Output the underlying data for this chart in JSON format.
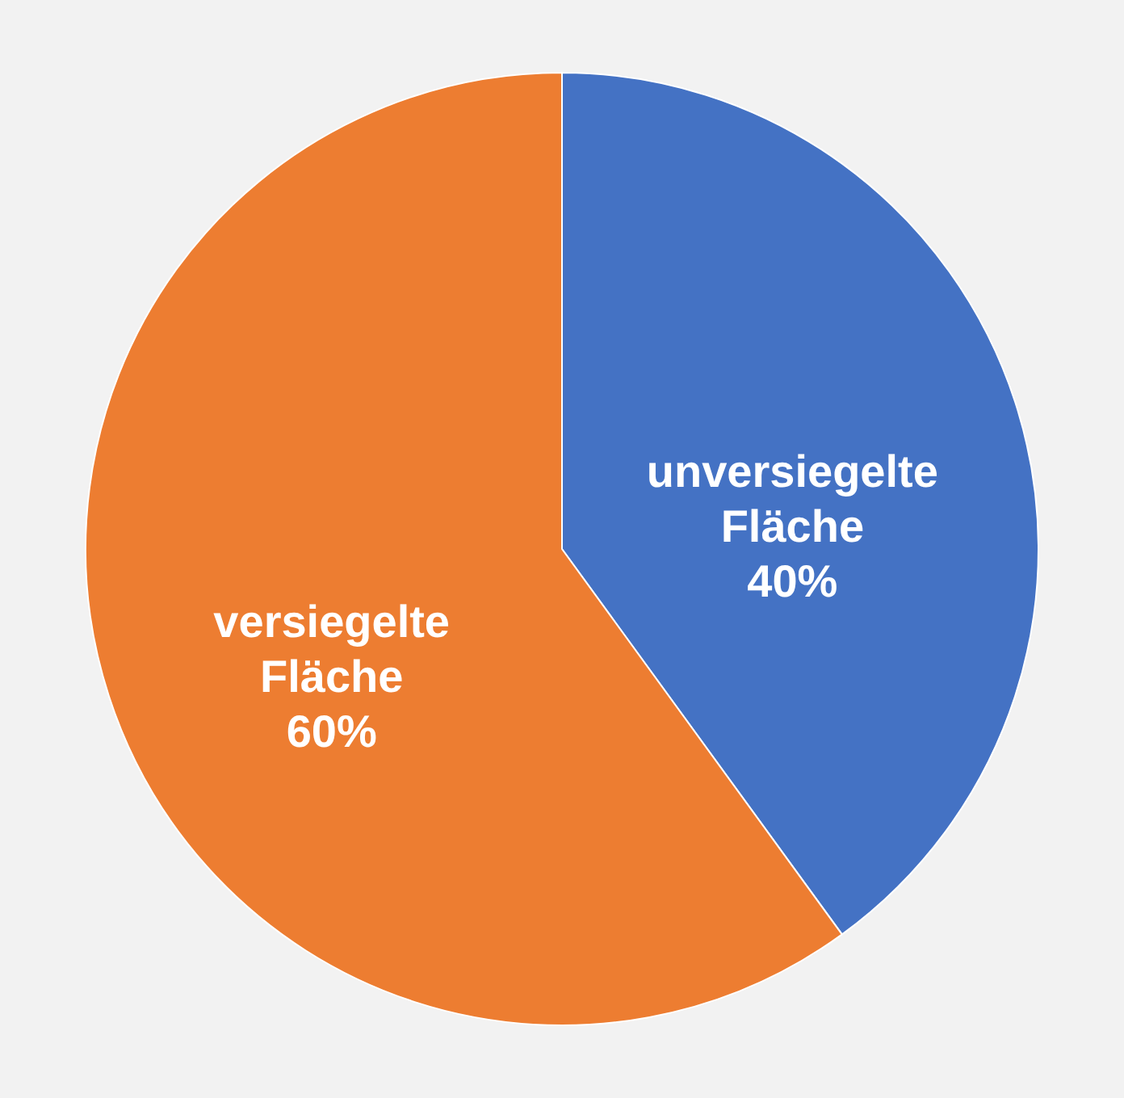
{
  "chart_data": {
    "type": "pie",
    "categories": [
      "unversiegelte Fläche",
      "versiegelte Fläche"
    ],
    "values": [
      40,
      60
    ],
    "colors": [
      "#4472c4",
      "#ed7d31"
    ],
    "value_labels": [
      "40%",
      "60%"
    ],
    "legend": false
  }
}
